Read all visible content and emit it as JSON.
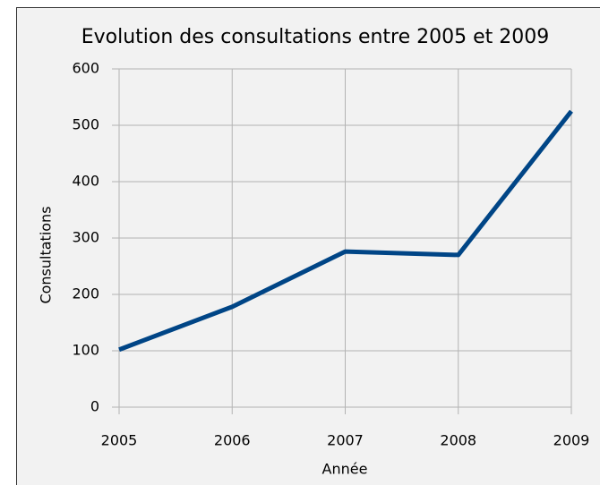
{
  "chart_data": {
    "type": "line",
    "title": "Evolution des consultations entre 2005 et 2009",
    "x_label": "Année",
    "y_label": "Consultations",
    "x": [
      2005,
      2006,
      2007,
      2008,
      2009
    ],
    "series": [
      {
        "name": "Consultations",
        "color": "#004586",
        "values": [
          102,
          178,
          276,
          270,
          525
        ]
      }
    ],
    "xlim": [
      2005,
      2009
    ],
    "xticks": [
      2005,
      2006,
      2007,
      2008,
      2009
    ],
    "ylim": [
      0,
      600
    ],
    "yticks": [
      0,
      100,
      200,
      300,
      400,
      500,
      600
    ],
    "grid": true
  }
}
